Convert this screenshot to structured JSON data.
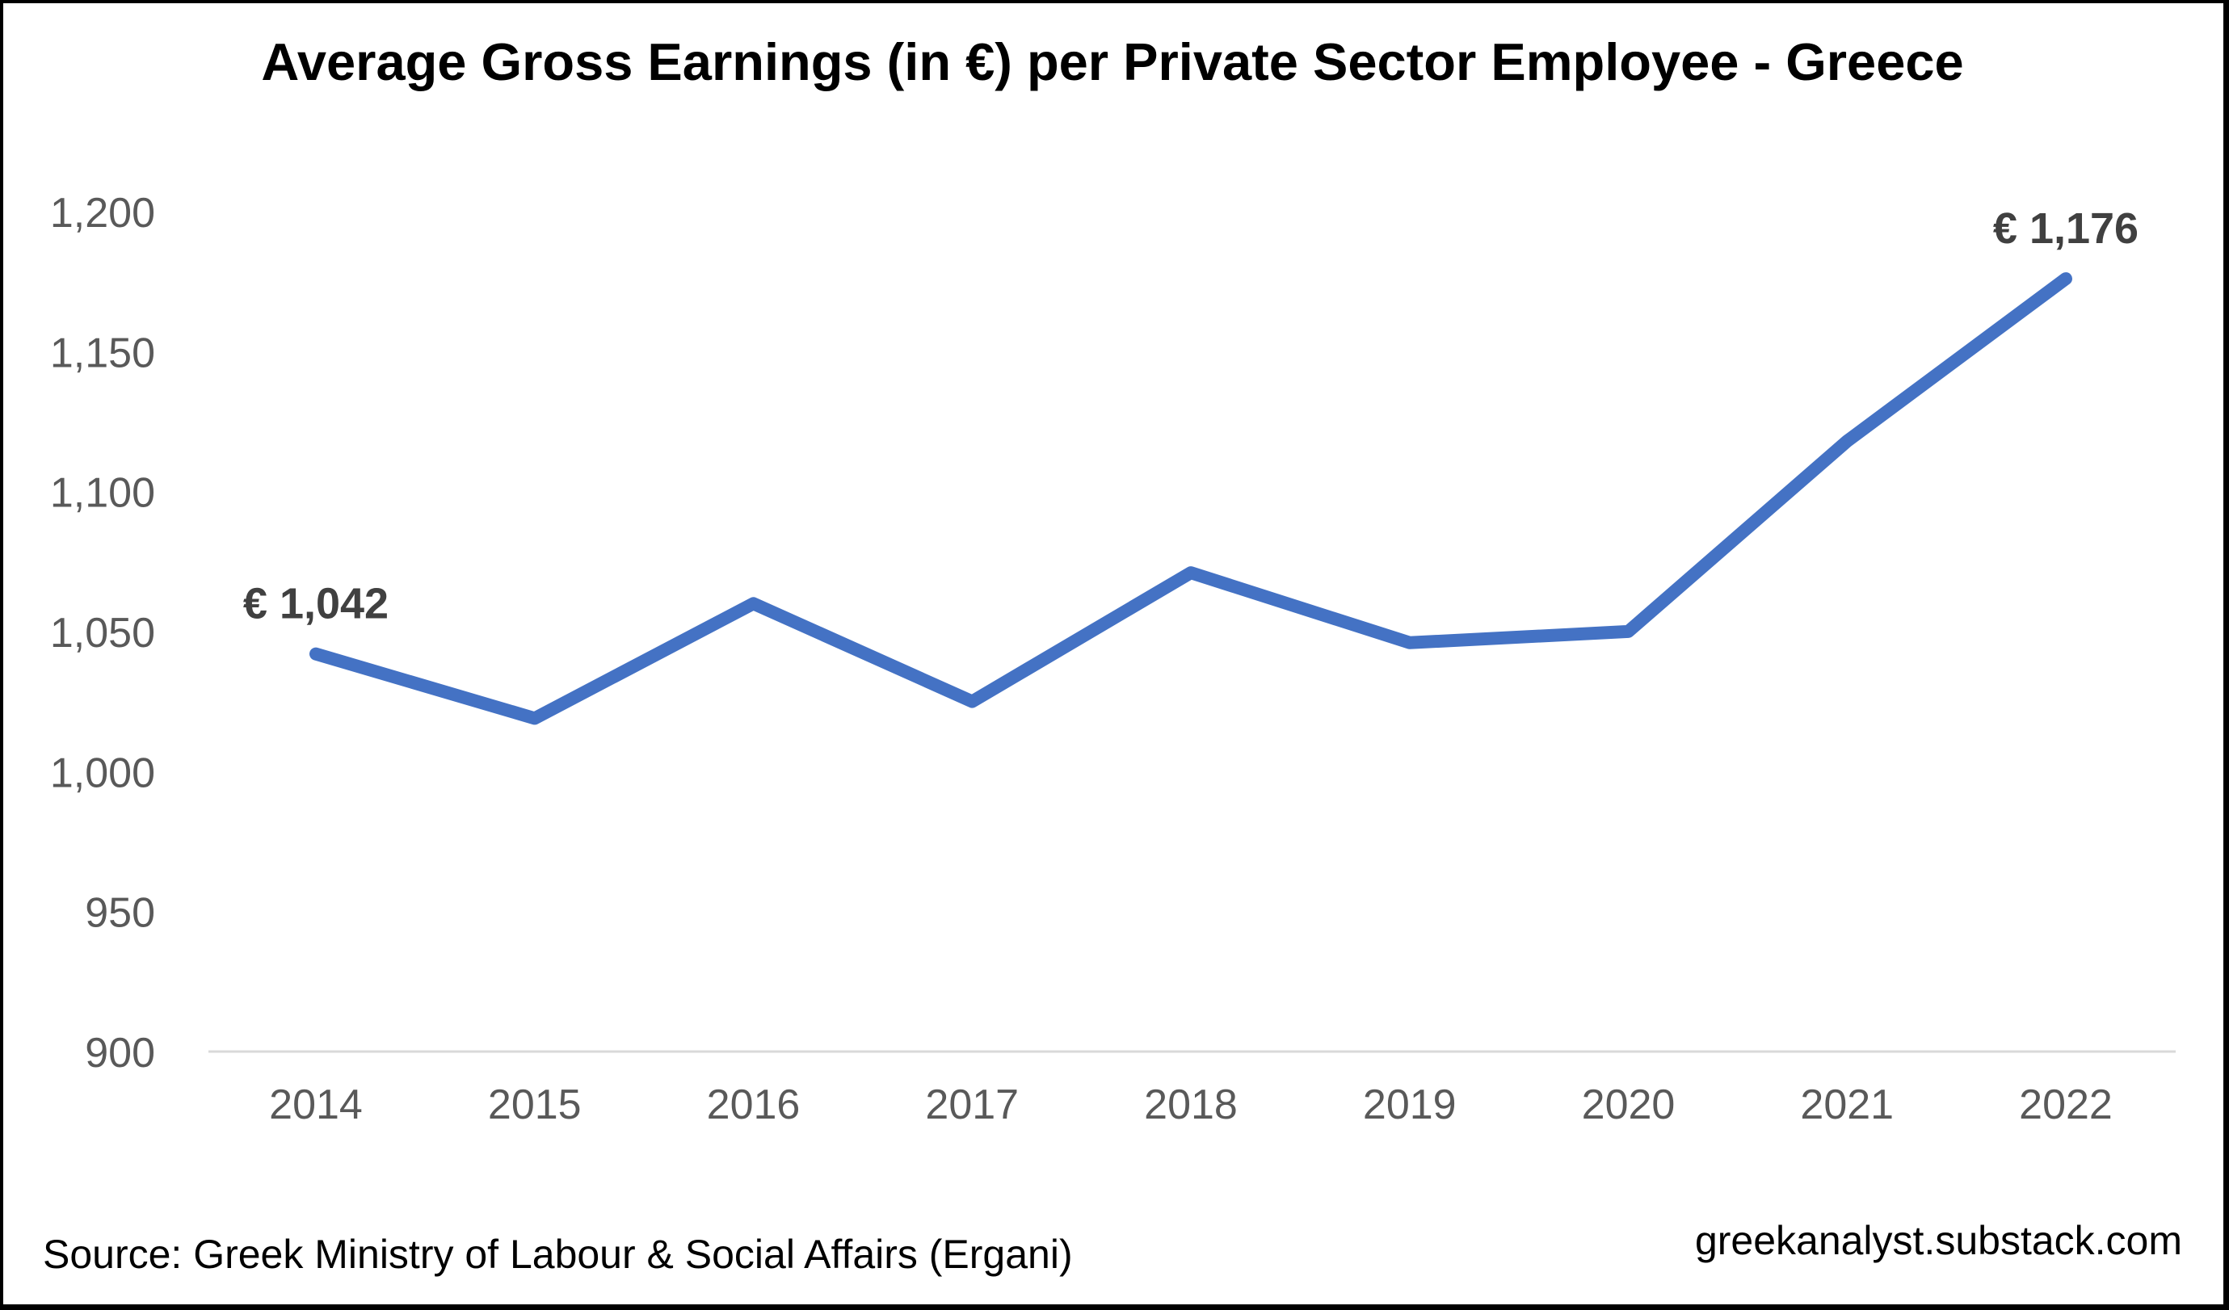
{
  "chart_data": {
    "type": "line",
    "title": "Average Gross Earnings (in €) per Private Sector Employee - Greece",
    "xlabel": "",
    "ylabel": "",
    "categories": [
      "2014",
      "2015",
      "2016",
      "2017",
      "2018",
      "2019",
      "2020",
      "2021",
      "2022"
    ],
    "series": [
      {
        "name": "Average Gross Earnings (€)",
        "color": "#4472C4",
        "values": [
          1042,
          1019,
          1060,
          1025,
          1071,
          1046,
          1050,
          1118,
          1176
        ]
      }
    ],
    "ylim": [
      900,
      1200
    ],
    "yticks": [
      900,
      950,
      1000,
      1050,
      1100,
      1150,
      1200
    ],
    "ytick_labels": [
      "900",
      "950",
      "1,000",
      "1,050",
      "1,100",
      "1,150",
      "1,200"
    ],
    "annotations": [
      {
        "category": "2014",
        "text": "€ 1,042"
      },
      {
        "category": "2022",
        "text": "€ 1,176"
      }
    ],
    "grid": false,
    "legend": "none"
  },
  "footer": {
    "source": "Source: Greek Ministry of Labour & Social Affairs (Ergani)",
    "watermark": "greekanalyst.substack.com"
  },
  "colors": {
    "line": "#4472C4",
    "axis": "#D9D9D9",
    "tick_text": "#595959",
    "data_label": "#404040",
    "border": "#000000"
  }
}
